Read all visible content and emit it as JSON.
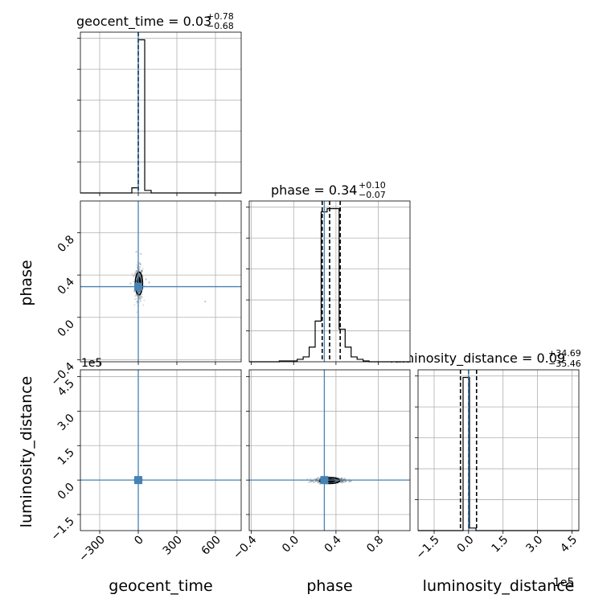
{
  "chart_data": {
    "type": "corner",
    "truth_color": "#4682b4",
    "params": [
      {
        "name": "geocent_time",
        "axis_label": "geocent_time",
        "range": [
          -450,
          800
        ],
        "ticks": [
          -300,
          0,
          300,
          600
        ],
        "tick_labels": [
          "−300",
          "0",
          "300",
          "600"
        ],
        "truth": 0,
        "title": {
          "main": "geocent_time = 0.03",
          "upper": "+0.78",
          "lower": "−0.68"
        },
        "quantiles": [
          -0.65,
          0.03,
          0.81
        ],
        "hist": {
          "edges": [
            -450,
            -400,
            -350,
            -300,
            -250,
            -200,
            -150,
            -100,
            -50,
            0,
            50,
            100,
            150,
            200,
            250,
            300,
            350,
            400,
            450,
            500,
            550,
            600,
            650,
            700,
            750,
            800
          ],
          "counts": [
            0,
            0,
            0,
            0,
            0,
            0,
            0,
            0,
            2,
            60,
            1,
            0,
            0,
            0,
            0,
            0,
            0,
            0,
            0,
            0,
            0,
            0,
            0,
            0,
            0
          ]
        }
      },
      {
        "name": "phase",
        "axis_label": "phase",
        "range": [
          -0.42,
          1.1
        ],
        "ticks": [
          -0.4,
          0.0,
          0.4,
          0.8
        ],
        "tick_labels": [
          "−0.4",
          "0.0",
          "0.4",
          "0.8"
        ],
        "truth": 0.29,
        "title": {
          "main": "phase = 0.34",
          "upper": "+0.10",
          "lower": "−0.07"
        },
        "quantiles": [
          0.27,
          0.34,
          0.44
        ],
        "hist": {
          "edges": [
            -0.42,
            -0.3633,
            -0.3067,
            -0.25,
            -0.1933,
            -0.1367,
            -0.08,
            -0.0233,
            0.0333,
            0.09,
            0.1467,
            0.2033,
            0.26,
            0.3167,
            0.3733,
            0.43,
            0.4867,
            0.5433,
            0.6,
            0.6567,
            0.7133,
            0.77,
            0.8267,
            0.8833,
            0.94,
            0.9967,
            1.0533,
            1.11
          ],
          "counts": [
            0,
            0,
            0,
            0,
            0,
            0.5,
            0.5,
            0.5,
            1.5,
            3,
            9,
            25,
            92,
            94,
            94,
            20,
            9,
            3,
            1.5,
            0.5,
            0,
            0,
            0,
            0,
            0,
            0,
            0
          ]
        }
      },
      {
        "name": "luminosity_distance",
        "axis_label": "luminosity_distance",
        "range": [
          -2.2,
          4.8
        ],
        "ticks": [
          -1.5,
          0.0,
          1.5,
          3.0,
          4.5
        ],
        "tick_labels": [
          "−1.5",
          "0.0",
          "1.5",
          "3.0",
          "4.5"
        ],
        "offset_label": "1e5",
        "truth": 0.0,
        "title": {
          "main": "luminosity_distance = 0.09",
          "upper": "+34.69",
          "lower": "−35.46"
        },
        "quantiles": [
          -0.354,
          0.0009,
          0.347
        ],
        "hist": {
          "edges": [
            -2.2,
            -1.92,
            -1.64,
            -1.36,
            -1.08,
            -0.8,
            -0.52,
            -0.24,
            0.04,
            0.32,
            0.6,
            0.88,
            1.16,
            1.44,
            1.72,
            2.0,
            2.28,
            2.56,
            2.84,
            3.12,
            3.4,
            3.68,
            3.96,
            4.24,
            4.52,
            4.8
          ],
          "counts": [
            0,
            0,
            0,
            0,
            0,
            0,
            0,
            60,
            1,
            0,
            0,
            0,
            0,
            0,
            0,
            0,
            0,
            0,
            0,
            0,
            0,
            0,
            0,
            0,
            0
          ]
        }
      }
    ],
    "scatter": {
      "time_phase": {
        "center": [
          5,
          0.32
        ],
        "spread": [
          15,
          0.08
        ],
        "outliers": [
          [
            -60,
            0.32
          ],
          [
            -35,
            0.39
          ],
          [
            60,
            0.36
          ],
          [
            85,
            0.33
          ],
          [
            -15,
            0.62
          ],
          [
            20,
            0.6
          ],
          [
            520,
            0.15
          ]
        ]
      },
      "time_dist": {
        "center": [
          0,
          0.0
        ],
        "spread": [
          10,
          0.03
        ]
      },
      "phase_dist": {
        "center": [
          0.34,
          -0.02
        ],
        "spread": [
          0.07,
          0.05
        ]
      }
    }
  }
}
